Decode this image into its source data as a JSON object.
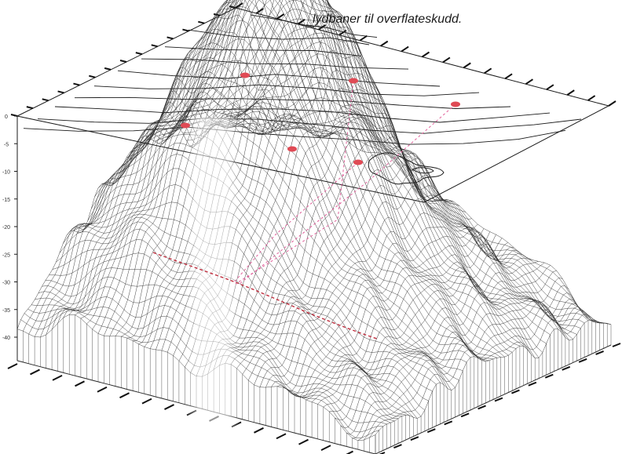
{
  "caption": {
    "line_partial": "",
    "line_main": "lydbaner til overflateskudd."
  },
  "z_axis": {
    "tick_labels": [
      "0",
      "-5",
      "-10",
      "-15",
      "-20",
      "-25",
      "-30",
      "-35",
      "-40"
    ]
  },
  "shot_points": [
    {
      "id": "shot-1"
    },
    {
      "id": "shot-2"
    },
    {
      "id": "shot-3"
    },
    {
      "id": "shot-4"
    },
    {
      "id": "shot-5"
    },
    {
      "id": "shot-6"
    }
  ],
  "colors": {
    "mesh": "#2a2a2a",
    "contour": "#1a1a1a",
    "shot_marker": "#e04a55",
    "ray_path": "#e0609a",
    "seabed_track": "#c03040",
    "background": "#ffffff",
    "highlight_band": "#ffffff"
  }
}
